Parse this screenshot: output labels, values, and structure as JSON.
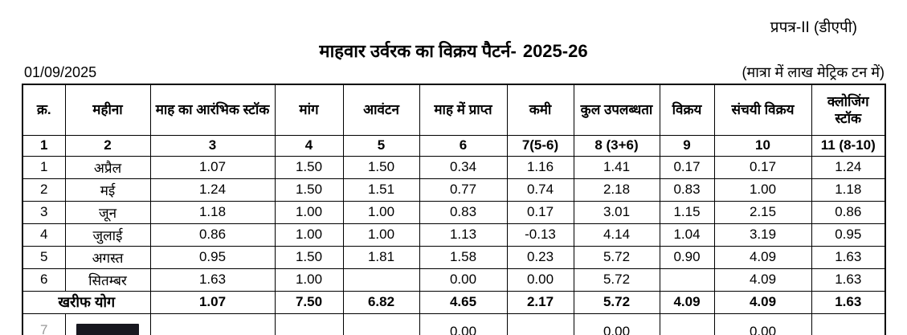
{
  "header": {
    "form_label": "प्रपत्र-II (डीएपी)",
    "title": "माहवार उर्वरक का विक्रय पैटर्न-",
    "year": "2025-26",
    "date": "01/09/2025",
    "unit_note": "(मात्रा में लाख मेट्रिक टन में)"
  },
  "table": {
    "columns": [
      "क्र.",
      "महीना",
      "माह का आरंभिक स्टॉक",
      "मांग",
      "आवंटन",
      "माह में प्राप्त",
      "कमी",
      "कुल उपलब्धता",
      "विक्रय",
      "संचयी विक्रय",
      "क्लोजिंग स्टॉक"
    ],
    "column_numbers": [
      "1",
      "2",
      "3",
      "4",
      "5",
      "6",
      "7(5-6)",
      "8 (3+6)",
      "9",
      "10",
      "11 (8-10)"
    ],
    "rows": [
      [
        "1",
        "अप्रैल",
        "1.07",
        "1.50",
        "1.50",
        "0.34",
        "1.16",
        "1.41",
        "0.17",
        "0.17",
        "1.24"
      ],
      [
        "2",
        "मई",
        "1.24",
        "1.50",
        "1.51",
        "0.77",
        "0.74",
        "2.18",
        "0.83",
        "1.00",
        "1.18"
      ],
      [
        "3",
        "जून",
        "1.18",
        "1.00",
        "1.00",
        "0.83",
        "0.17",
        "3.01",
        "1.15",
        "2.15",
        "0.86"
      ],
      [
        "4",
        "जुलाई",
        "0.86",
        "1.00",
        "1.00",
        "1.13",
        "-0.13",
        "4.14",
        "1.04",
        "3.19",
        "0.95"
      ],
      [
        "5",
        "अगस्त",
        "0.95",
        "1.50",
        "1.81",
        "1.58",
        "0.23",
        "5.72",
        "0.90",
        "4.09",
        "1.63"
      ],
      [
        "6",
        "सितम्बर",
        "1.63",
        "1.00",
        "",
        "0.00",
        "0.00",
        "5.72",
        "",
        "4.09",
        "1.63"
      ]
    ],
    "total_row": {
      "label": "खरीफ योग",
      "values": [
        "1.07",
        "7.50",
        "6.82",
        "4.65",
        "2.17",
        "5.72",
        "4.09",
        "4.09",
        "1.63"
      ]
    },
    "partial_row": {
      "serial": "7",
      "cells": [
        "",
        "",
        "",
        "0.00",
        "",
        "0.00",
        "",
        "0.00",
        ""
      ]
    }
  }
}
